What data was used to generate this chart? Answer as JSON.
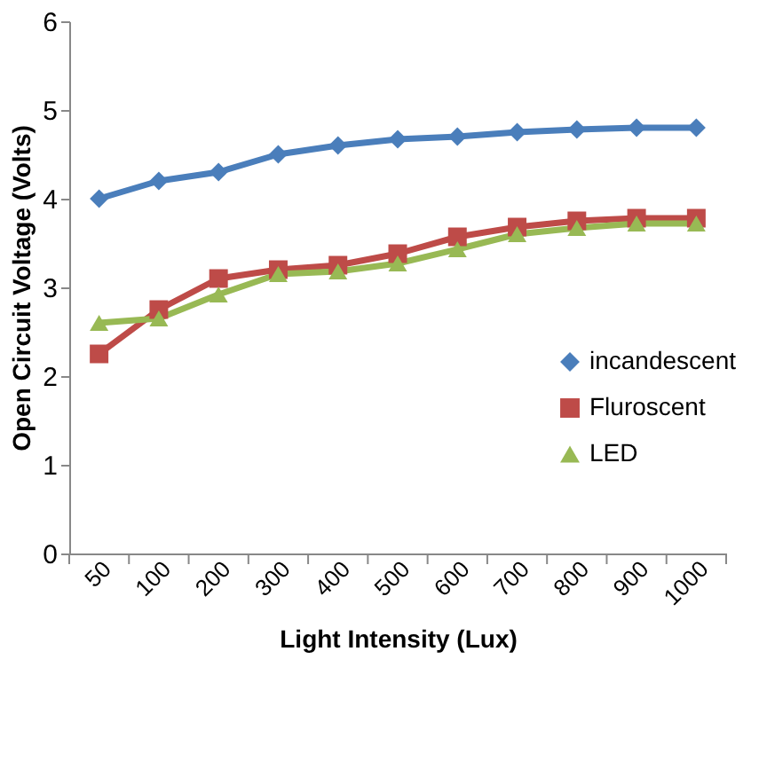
{
  "chart_data": {
    "type": "line",
    "xlabel": "Light Intensity (Lux)",
    "ylabel": "Open Circuit Voltage (Volts)",
    "categories": [
      "50",
      "100",
      "200",
      "300",
      "400",
      "500",
      "600",
      "700",
      "800",
      "900",
      "1000"
    ],
    "series": [
      {
        "name": "incandescent",
        "color": "#4a7ebb",
        "marker": "diamond",
        "values": [
          4.0,
          4.2,
          4.3,
          4.5,
          4.6,
          4.67,
          4.7,
          4.75,
          4.78,
          4.8,
          4.8
        ]
      },
      {
        "name": "Fluroscent",
        "color": "#be4b48",
        "marker": "square",
        "values": [
          2.25,
          2.75,
          3.1,
          3.2,
          3.25,
          3.38,
          3.57,
          3.68,
          3.75,
          3.78,
          3.78
        ]
      },
      {
        "name": "LED",
        "color": "#98b954",
        "marker": "triangle",
        "values": [
          2.6,
          2.65,
          2.92,
          3.15,
          3.18,
          3.27,
          3.43,
          3.6,
          3.67,
          3.72,
          3.72
        ]
      }
    ],
    "ylim": [
      0,
      6
    ],
    "yticks": [
      0,
      1,
      2,
      3,
      4,
      5,
      6
    ],
    "grid": false,
    "legend": "right"
  }
}
